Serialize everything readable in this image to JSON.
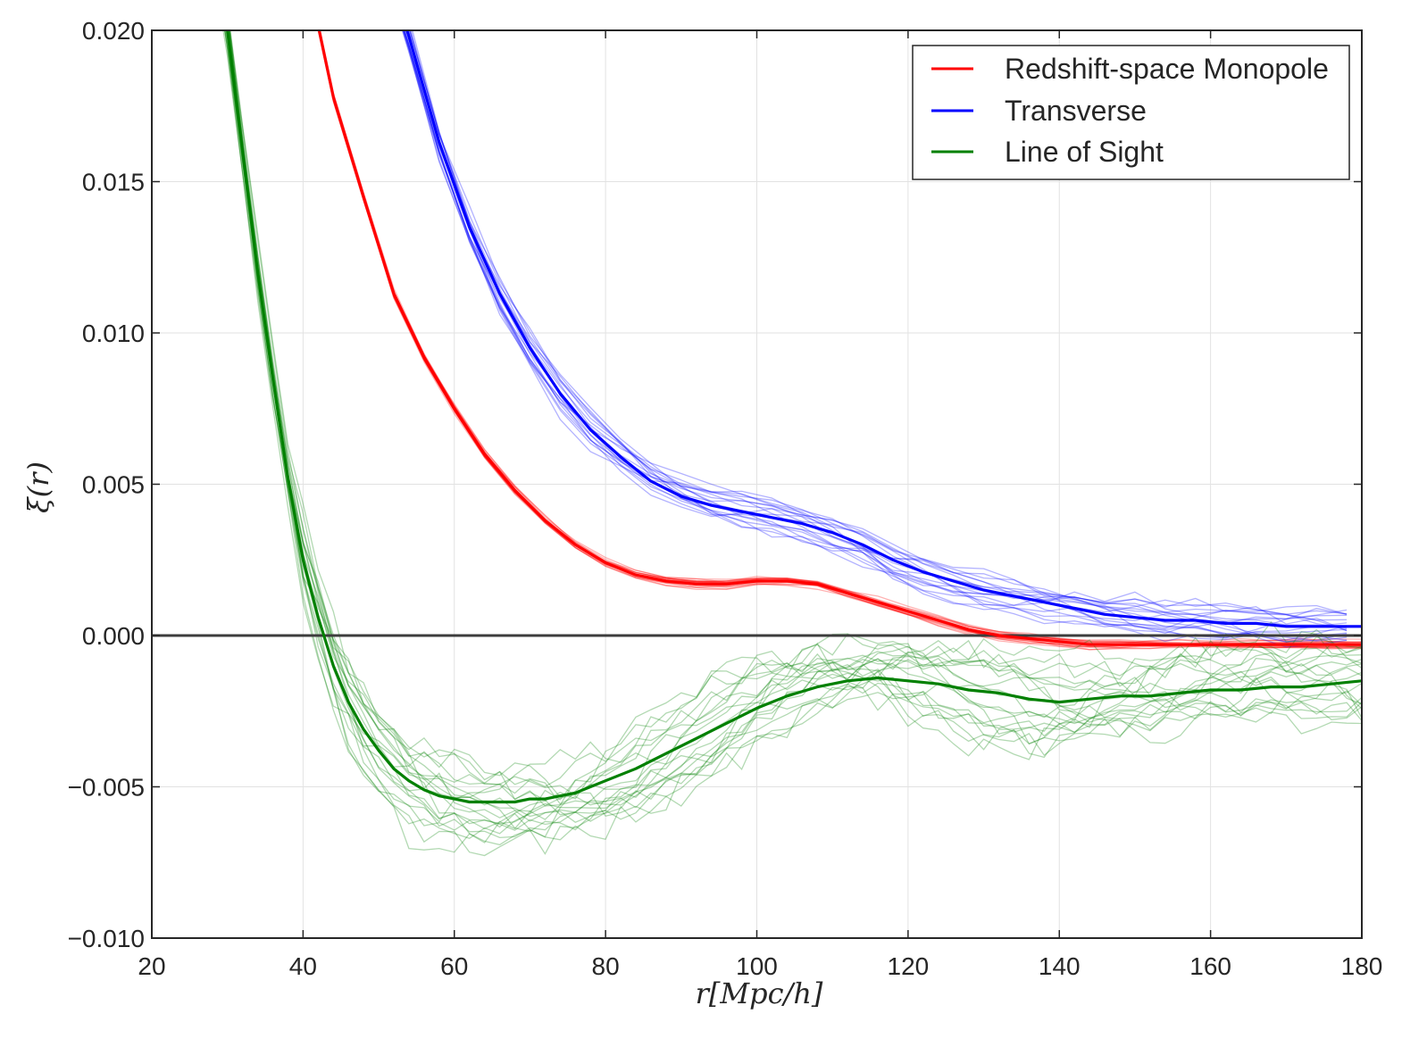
{
  "chart_data": {
    "type": "line",
    "xlabel": "r[Mpc/h]",
    "ylabel": "ξ(r)",
    "xlim": [
      20,
      180
    ],
    "ylim": [
      -0.01,
      0.02
    ],
    "xticks": [
      20,
      40,
      60,
      80,
      100,
      120,
      140,
      160,
      180
    ],
    "xtick_labels": [
      "20",
      "40",
      "60",
      "80",
      "100",
      "120",
      "140",
      "160",
      "180"
    ],
    "yticks": [
      -0.01,
      -0.005,
      0.0,
      0.005,
      0.01,
      0.015,
      0.02
    ],
    "ytick_labels": [
      "−0.010",
      "−0.005",
      "0.000",
      "0.005",
      "0.010",
      "0.015",
      "0.020"
    ],
    "grid": true,
    "zero_line": 0,
    "legend": {
      "placement": "top-right"
    },
    "series": [
      {
        "name": "Redshift-space Monopole",
        "color": "#ff0000",
        "x": [
          40,
          44,
          48,
          52,
          56,
          60,
          64,
          68,
          72,
          76,
          80,
          84,
          88,
          92,
          96,
          100,
          104,
          108,
          112,
          116,
          120,
          124,
          128,
          132,
          136,
          140,
          144,
          148,
          152,
          156,
          160,
          164,
          168,
          172,
          176,
          180
        ],
        "values": [
          0.0225,
          0.0178,
          0.0145,
          0.0113,
          0.0092,
          0.0075,
          0.006,
          0.0048,
          0.0038,
          0.003,
          0.0024,
          0.002,
          0.0018,
          0.0017,
          0.0017,
          0.0018,
          0.0018,
          0.0017,
          0.0014,
          0.0011,
          0.0008,
          0.0005,
          0.0002,
          0.0,
          -0.0001,
          -0.0002,
          -0.0003,
          -0.0003,
          -0.0003,
          -0.0003,
          -0.0003,
          -0.0003,
          -0.0003,
          -0.0003,
          -0.0003,
          -0.0003
        ]
      },
      {
        "name": "Transverse",
        "color": "#0000ff",
        "x": [
          50,
          54,
          58,
          62,
          66,
          70,
          74,
          78,
          82,
          86,
          90,
          94,
          98,
          102,
          106,
          110,
          114,
          118,
          122,
          126,
          130,
          134,
          138,
          142,
          146,
          150,
          154,
          158,
          162,
          166,
          170,
          174,
          180
        ],
        "values": [
          0.023,
          0.0198,
          0.0163,
          0.0135,
          0.0113,
          0.0095,
          0.008,
          0.0068,
          0.0059,
          0.0051,
          0.0046,
          0.0043,
          0.0041,
          0.0039,
          0.0037,
          0.0034,
          0.003,
          0.0025,
          0.0021,
          0.0018,
          0.0015,
          0.0013,
          0.0011,
          0.0009,
          0.0007,
          0.0006,
          0.0005,
          0.0005,
          0.0004,
          0.0004,
          0.0003,
          0.0003,
          0.0003
        ]
      },
      {
        "name": "Line of Sight",
        "color": "#008000",
        "x": [
          28,
          30,
          32,
          34,
          36,
          38,
          40,
          42,
          44,
          46,
          48,
          50,
          52,
          54,
          56,
          58,
          60,
          62,
          64,
          66,
          68,
          70,
          72,
          74,
          76,
          78,
          80,
          84,
          88,
          92,
          96,
          100,
          104,
          108,
          112,
          116,
          120,
          124,
          128,
          132,
          136,
          140,
          144,
          148,
          152,
          156,
          160,
          164,
          168,
          172,
          176,
          180
        ],
        "values": [
          0.023,
          0.02,
          0.016,
          0.012,
          0.0085,
          0.0052,
          0.0025,
          0.0006,
          -0.001,
          -0.0022,
          -0.0031,
          -0.0038,
          -0.0044,
          -0.0048,
          -0.0051,
          -0.0053,
          -0.0054,
          -0.0055,
          -0.0055,
          -0.0055,
          -0.0055,
          -0.0054,
          -0.0054,
          -0.0053,
          -0.0052,
          -0.005,
          -0.0048,
          -0.0044,
          -0.0039,
          -0.0034,
          -0.0029,
          -0.0024,
          -0.002,
          -0.0017,
          -0.0015,
          -0.0014,
          -0.0015,
          -0.0016,
          -0.0018,
          -0.0019,
          -0.0021,
          -0.0022,
          -0.0021,
          -0.002,
          -0.002,
          -0.0019,
          -0.0018,
          -0.0018,
          -0.0017,
          -0.0017,
          -0.0016,
          -0.0015
        ]
      }
    ]
  }
}
